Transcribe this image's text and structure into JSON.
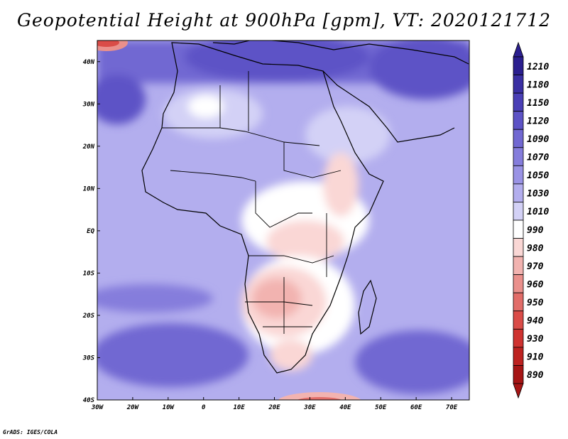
{
  "title": "Geopotential Height at 900hPa [gpm], VT: 2020121712",
  "credit": "GrADS: IGES/COLA",
  "map": {
    "region": "Africa",
    "lon_range": [
      -30,
      75
    ],
    "lat_range": [
      -40,
      45
    ],
    "lon_ticks": [
      "30W",
      "20W",
      "10W",
      "0",
      "10E",
      "20E",
      "30E",
      "40E",
      "50E",
      "60E",
      "70E"
    ],
    "lat_ticks": [
      "40N",
      "30N",
      "20N",
      "10N",
      "EQ",
      "10S",
      "20S",
      "30S",
      "40S"
    ]
  },
  "colorbar": {
    "levels": [
      {
        "label": "1210",
        "color": "#2b1f8f"
      },
      {
        "label": "1180",
        "color": "#3a2fa3"
      },
      {
        "label": "1150",
        "color": "#4a3fb6"
      },
      {
        "label": "1120",
        "color": "#5d53c6"
      },
      {
        "label": "1090",
        "color": "#7168d2"
      },
      {
        "label": "1070",
        "color": "#857ddc"
      },
      {
        "label": "1050",
        "color": "#9a93e5"
      },
      {
        "label": "1030",
        "color": "#b3aeee"
      },
      {
        "label": "1010",
        "color": "#d3d1f6"
      },
      {
        "label": "990",
        "color": "#ffffff"
      },
      {
        "label": "980",
        "color": "#fad7d5"
      },
      {
        "label": "970",
        "color": "#f2b3b0"
      },
      {
        "label": "960",
        "color": "#ea908c"
      },
      {
        "label": "950",
        "color": "#e26d69"
      },
      {
        "label": "940",
        "color": "#da4c48"
      },
      {
        "label": "930",
        "color": "#cf3330"
      },
      {
        "label": "910",
        "color": "#bd2220"
      },
      {
        "label": "890",
        "color": "#a61515"
      }
    ]
  }
}
